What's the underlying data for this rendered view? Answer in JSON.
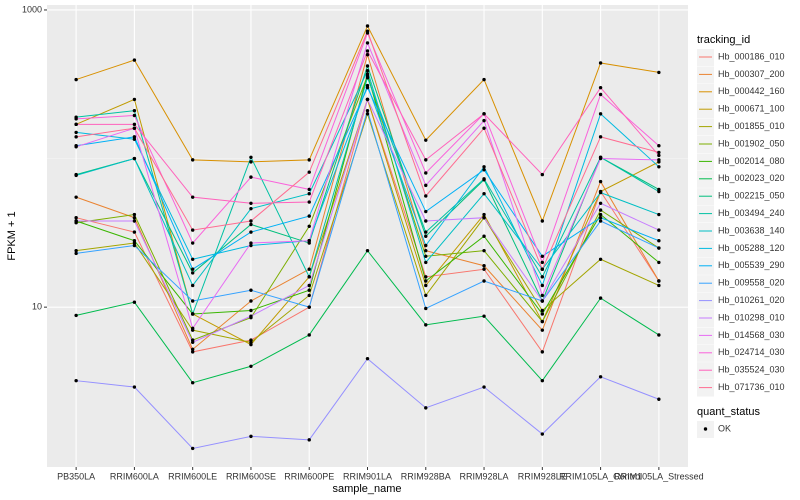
{
  "chart_data": {
    "type": "line",
    "x_label": "sample_name",
    "y_label": "FPKM + 1",
    "log_y": true,
    "grid": true,
    "ylim": [
      0.84,
      1080
    ],
    "yticks": [
      10,
      1000
    ],
    "legend_title": "tracking_id",
    "point_legend": {
      "title": "quant_status",
      "labels": [
        "OK"
      ],
      "color": "#000000"
    },
    "categories": [
      "PB350LA",
      "RRIM600LA",
      "RRIM600LE",
      "RRIM600SE",
      "RRIM600PE",
      "RRIM901LA",
      "RRIM928BA",
      "RRIM928LA",
      "RRIM928LE",
      "RRIM105LA_Control",
      "RRIM105LA_Stressed"
    ],
    "series": [
      {
        "name": "Hb_000186_010",
        "color": "#F8766D",
        "values": [
          40,
          32,
          5,
          6,
          10,
          250,
          16,
          18,
          5,
          60,
          15
        ]
      },
      {
        "name": "Hb_000307_200",
        "color": "#EA8331",
        "values": [
          55,
          40,
          5.2,
          11,
          18,
          500,
          24,
          19,
          7,
          70,
          15
        ]
      },
      {
        "name": "Hb_000442_160",
        "color": "#D89000",
        "values": [
          340,
          460,
          98,
          95,
          98,
          780,
          133,
          340,
          38,
          440,
          380
        ]
      },
      {
        "name": "Hb_000671_100",
        "color": "#C09B00",
        "values": [
          170,
          250,
          9,
          5.6,
          16,
          250,
          14,
          42,
          8,
          60,
          95
        ]
      },
      {
        "name": "Hb_001855_010",
        "color": "#A3A500",
        "values": [
          24,
          27,
          7,
          5.8,
          12,
          200,
          12,
          40,
          9.5,
          21,
          14
        ]
      },
      {
        "name": "Hb_001902_050",
        "color": "#7CAE00",
        "values": [
          37,
          42,
          6,
          8.5,
          35,
          360,
          22,
          24,
          8,
          45,
          25
        ]
      },
      {
        "name": "Hb_002014_080",
        "color": "#39B600",
        "values": [
          38,
          28,
          9,
          9.5,
          13,
          370,
          15,
          30,
          9,
          42,
          20
        ]
      },
      {
        "name": "Hb_002023_020",
        "color": "#00BB4E",
        "values": [
          8.8,
          10.8,
          3.1,
          4,
          6.5,
          24,
          7.6,
          8.7,
          3.2,
          11.5,
          6.5
        ]
      },
      {
        "name": "Hb_002215_050",
        "color": "#00BF7D",
        "values": [
          78,
          100,
          17,
          36,
          27,
          420,
          30,
          72,
          11,
          102,
          62
        ]
      },
      {
        "name": "Hb_003494_240",
        "color": "#00C1A3",
        "values": [
          190,
          210,
          9,
          102,
          16,
          350,
          32,
          73,
          16,
          102,
          60
        ]
      },
      {
        "name": "Hb_003638_140",
        "color": "#00BFC4",
        "values": [
          77,
          100,
          14,
          46,
          58,
          390,
          20,
          58,
          18,
          59,
          42
        ]
      },
      {
        "name": "Hb_005288_120",
        "color": "#00BAE0",
        "values": [
          150,
          135,
          21,
          26,
          28,
          310,
          26,
          88,
          14,
          200,
          88
        ]
      },
      {
        "name": "Hb_005539_290",
        "color": "#00B0F6",
        "values": [
          122,
          140,
          18,
          32,
          41,
          300,
          44,
          84,
          22,
          40,
          28
        ]
      },
      {
        "name": "Hb_009558_020",
        "color": "#35A2FF",
        "values": [
          23,
          26,
          11,
          13,
          10,
          210,
          9.8,
          15,
          11,
          38,
          25
        ]
      },
      {
        "name": "Hb_010261_020",
        "color": "#9590FF",
        "values": [
          3.2,
          2.9,
          1.12,
          1.35,
          1.28,
          4.5,
          2.1,
          2.9,
          1.4,
          3.4,
          2.4
        ]
      },
      {
        "name": "Hb_010298_010",
        "color": "#C77CFF",
        "values": [
          38,
          38,
          5.8,
          8.7,
          14,
          250,
          38,
          40,
          11,
          50,
          33
        ]
      },
      {
        "name": "Hb_014568_030",
        "color": "#E76BF3",
        "values": [
          120,
          160,
          7.2,
          27,
          28,
          600,
          66,
          180,
          12,
          100,
          98
        ]
      },
      {
        "name": "Hb_024714_030",
        "color": "#FA62DB",
        "values": [
          185,
          195,
          27,
          75,
          62,
          700,
          80,
          200,
          20,
          270,
          122
        ]
      },
      {
        "name": "Hb_035524_030",
        "color": "#FF62BC",
        "values": [
          170,
          170,
          55,
          50,
          51,
          530,
          98,
          200,
          78,
          300,
          105
        ]
      },
      {
        "name": "Hb_071736_010",
        "color": "#FF6C91",
        "values": [
          140,
          160,
          33,
          38,
          81,
          720,
          56,
          160,
          18,
          140,
          110
        ]
      }
    ]
  }
}
